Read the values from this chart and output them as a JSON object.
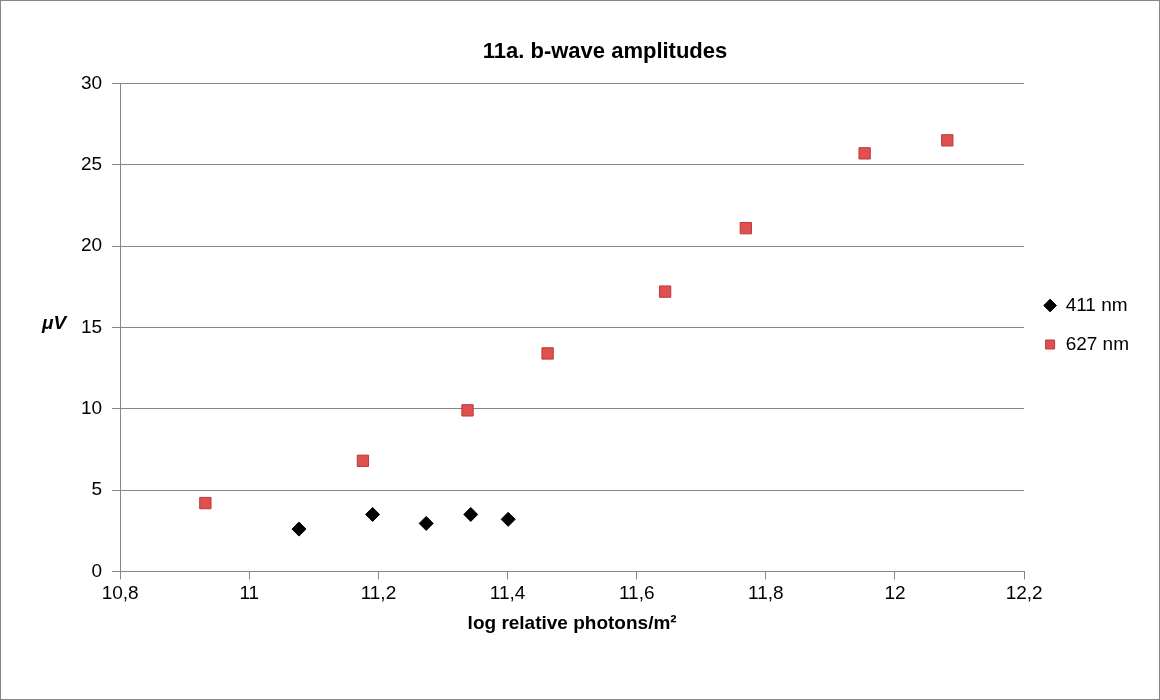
{
  "chart_data": {
    "type": "scatter",
    "title": "11a. b-wave amplitudes",
    "xlabel": "log relative photons/m²",
    "ylabel": "μV",
    "series": [
      {
        "name": "411 nm",
        "color": "#000000",
        "marker": "diamond",
        "x": [
          11.077,
          11.191,
          11.274,
          11.343,
          11.401
        ],
        "values": [
          2.6,
          3.5,
          2.95,
          3.5,
          3.2
        ]
      },
      {
        "name": "627 nm",
        "color": "#e0504f",
        "marker": "square",
        "x": [
          10.932,
          11.176,
          11.338,
          11.462,
          11.644,
          11.769,
          11.953,
          12.081
        ],
        "values": [
          4.2,
          6.8,
          9.9,
          13.4,
          17.2,
          21.1,
          25.7,
          26.5
        ]
      }
    ],
    "xlim": [
      10.8,
      12.2
    ],
    "xticks": [
      {
        "value": 10.8,
        "label": "10,8"
      },
      11,
      {
        "value": 11.2,
        "label": "11,2"
      },
      {
        "value": 11.4,
        "label": "11,4"
      },
      {
        "value": 11.6,
        "label": "11,6"
      },
      {
        "value": 11.8,
        "label": "11,8"
      },
      12,
      {
        "value": 12.2,
        "label": "12,2"
      }
    ],
    "ylim": [
      0,
      30
    ],
    "yticks": [
      0,
      5,
      10,
      15,
      20,
      25,
      30
    ],
    "grid": "y",
    "legend": "right"
  }
}
